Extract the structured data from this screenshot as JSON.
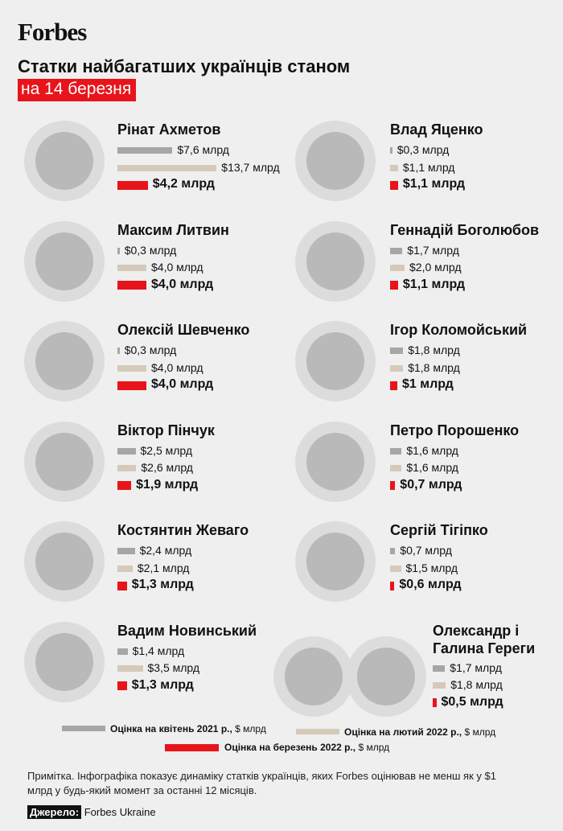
{
  "brand": "Forbes",
  "title": "Статки найбагатших українців станом",
  "subtitle": "на 14 березня",
  "chart_data": {
    "type": "bar",
    "categories": [
      "Рінат Ахметов",
      "Влад Яценко",
      "Максим Литвин",
      "Геннадій Боголюбов",
      "Олексій Шевченко",
      "Ігор Коломойський",
      "Віктор Пінчук",
      "Петро Порошенко",
      "Костянтин Жеваго",
      "Сергій Тігіпко",
      "Вадим Новинський",
      "Олександр і\nГалина Гереги"
    ],
    "series": [
      {
        "name": "Оцінка на квітень 2021 р.,",
        "unit": "$ млрд",
        "color": "#a6a6a6",
        "values": [
          7.6,
          0.3,
          0.3,
          1.7,
          0.3,
          1.8,
          2.5,
          1.6,
          2.4,
          0.7,
          1.4,
          1.7
        ],
        "value_labels": [
          "$7,6 млрд",
          "$0,3 млрд",
          "$0,3 млрд",
          "$1,7 млрд",
          "$0,3 млрд",
          "$1,8 млрд",
          "$2,5 млрд",
          "$1,6 млрд",
          "$2,4 млрд",
          "$0,7 млрд",
          "$1,4 млрд",
          "$1,7 млрд"
        ]
      },
      {
        "name": "Оцінка на лютий 2022 р.,",
        "unit": "$ млрд",
        "color": "#d5c9b9",
        "values": [
          13.7,
          1.1,
          4.0,
          2.0,
          4.0,
          1.8,
          2.6,
          1.6,
          2.1,
          1.5,
          3.5,
          1.8
        ],
        "value_labels": [
          "$13,7 млрд",
          "$1,1 млрд",
          "$4,0 млрд",
          "$2,0 млрд",
          "$4,0 млрд",
          "$1,8 млрд",
          "$2,6 млрд",
          "$1,6 млрд",
          "$2,1 млрд",
          "$1,5 млрд",
          "$3,5 млрд",
          "$1,8 млрд"
        ]
      },
      {
        "name": "Оцінка на березень 2022 р.,",
        "unit": "$ млрд",
        "color": "#e8141b",
        "values": [
          4.2,
          1.1,
          4.0,
          1.1,
          4.0,
          1,
          1.9,
          0.7,
          1.3,
          0.6,
          1.3,
          0.5
        ],
        "value_labels": [
          "$4,2 млрд",
          "$1,1 млрд",
          "$4,0 млрд",
          "$1,1 млрд",
          "$4,0 млрд",
          "$1 млрд",
          "$1,9 млрд",
          "$0,7 млрд",
          "$1,3 млрд",
          "$0,6 млрд",
          "$1,3 млрд",
          "$0,5 млрд"
        ]
      }
    ]
  },
  "note": "Примітка. Інфографіка показує динаміку статків українців, яких Forbes оцінював не менш як у $1 млрд у будь-який момент за останні 12 місяців.",
  "source_label": "Джерело:",
  "source": "Forbes Ukraine"
}
